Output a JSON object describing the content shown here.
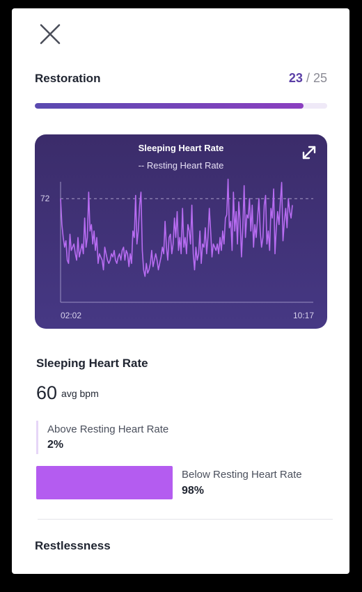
{
  "header": {
    "close_icon": "close-icon"
  },
  "restoration": {
    "title": "Restoration",
    "score": "23",
    "separator": " / ",
    "max": "25",
    "progress_fraction": 0.92
  },
  "chart": {
    "title": "Sleeping Heart Rate",
    "legend": "-- Resting Heart Rate",
    "expand_icon": "expand-icon",
    "colors": {
      "line": "#b86cf2",
      "background": "#3b2c6a",
      "resting_line": "#a79cc8"
    }
  },
  "chart_data": {
    "type": "line",
    "title": "Sleeping Heart Rate",
    "legend": [
      "-- Resting Heart Rate"
    ],
    "resting_heart_rate": 72,
    "y_ticks": [
      "72"
    ],
    "x_ticks": [
      "02:02",
      "10:17"
    ],
    "ylim": [
      40,
      80
    ],
    "grid": false,
    "series": [
      {
        "values": [
          72,
          64,
          60,
          57,
          59,
          53,
          52,
          61,
          56,
          57,
          58,
          55,
          53,
          60,
          54,
          56,
          58,
          55,
          66,
          57,
          60,
          74,
          62,
          64,
          58,
          62,
          56,
          60,
          52,
          55,
          54,
          53,
          50,
          57,
          55,
          53,
          52,
          53,
          55,
          54,
          56,
          53,
          52,
          54,
          55,
          53,
          56,
          57,
          53,
          56,
          55,
          51,
          55,
          52,
          62,
          60,
          73,
          58,
          62,
          70,
          74,
          56,
          50,
          48,
          52,
          49,
          50,
          52,
          56,
          51,
          53,
          55,
          53,
          50,
          52,
          54,
          57,
          55,
          65,
          57,
          53,
          60,
          61,
          55,
          58,
          66,
          60,
          68,
          56,
          60,
          55,
          69,
          57,
          60,
          55,
          64,
          62,
          58,
          70,
          55,
          50,
          57,
          53,
          55,
          62,
          52,
          58,
          57,
          63,
          55,
          60,
          69,
          62,
          54,
          58,
          57,
          56,
          58,
          55,
          60,
          56,
          62,
          58,
          66,
          67,
          78,
          63,
          65,
          56,
          74,
          62,
          68,
          58,
          71,
          65,
          54,
          63,
          76,
          60,
          67,
          66,
          72,
          62,
          70,
          57,
          64,
          60,
          66,
          72,
          62,
          57,
          60,
          70,
          73,
          58,
          62,
          56,
          69,
          66,
          75,
          55,
          63,
          68,
          64,
          71,
          77,
          59,
          65,
          69,
          63,
          72,
          68,
          66,
          70
        ]
      }
    ]
  },
  "sleeping_hr": {
    "heading": "Sleeping Heart Rate",
    "avg_value": "60",
    "avg_unit": "avg bpm",
    "above_label": "Above Resting Heart Rate",
    "above_value": "2%",
    "above_fraction": 0.02,
    "below_label": "Below Resting Heart Rate",
    "below_value": "98%",
    "below_fraction": 0.98,
    "colors": {
      "above": "#e6d6f7",
      "below": "#b45cf0"
    }
  },
  "restlessness": {
    "heading": "Restlessness"
  }
}
